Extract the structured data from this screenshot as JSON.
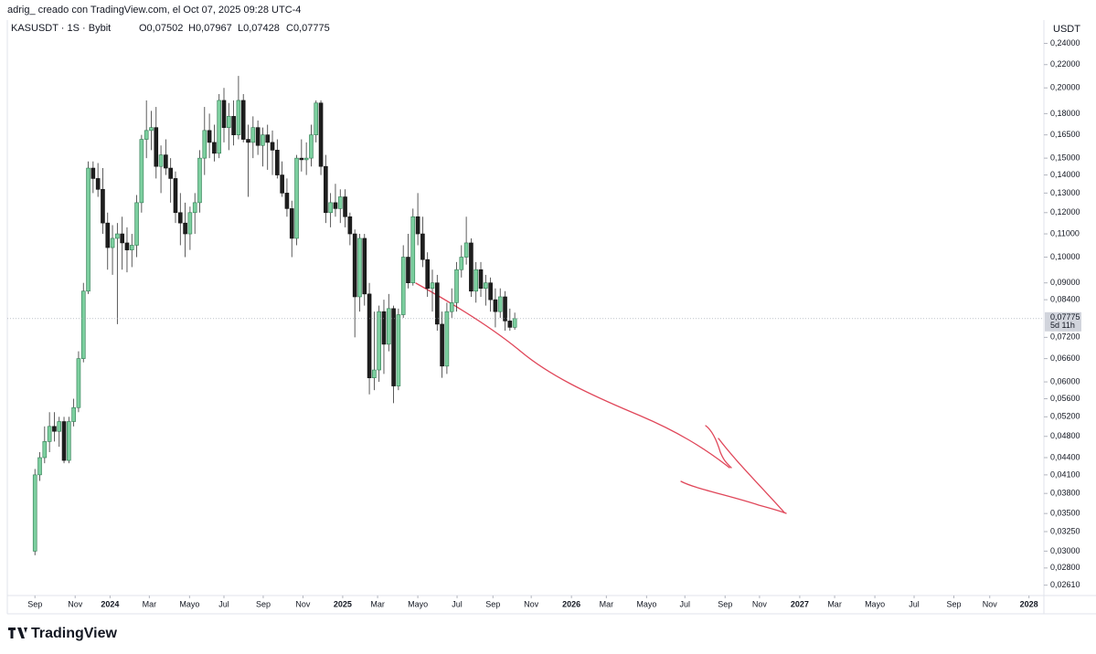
{
  "chart_data": {
    "type": "candlestick",
    "credit": "adrig_ creado con TradingView.com, el Oct 07, 2025 09:28 UTC-4",
    "title": "KASUSDT · 1S · Bybit",
    "ohlc_labels": [
      "O0,07502",
      "H0,07967",
      "L0,07428",
      "C0,07775"
    ],
    "y_unit": "USDT",
    "last_price_label": "0,07775",
    "countdown": "5d 11h",
    "brand": "TradingView",
    "log_scale": true,
    "grid": false,
    "up_color": "#7ccf9f",
    "down_color": "#1e1e1e",
    "x": [
      0,
      1,
      2,
      3,
      4,
      5,
      6,
      7,
      8,
      9,
      10,
      11,
      12,
      13,
      14,
      15,
      16,
      17,
      18,
      19,
      20,
      21,
      22,
      23,
      24,
      25,
      26,
      27,
      28,
      29,
      30,
      31,
      32,
      33,
      34,
      35,
      36,
      37,
      38,
      39,
      40,
      41,
      42,
      43,
      44,
      45,
      46,
      47,
      48,
      49,
      50,
      51,
      52,
      53,
      54,
      55,
      56,
      57,
      58,
      59,
      60,
      61,
      62,
      63,
      64,
      65,
      66,
      67,
      68,
      69,
      70,
      71,
      72,
      73,
      74,
      75,
      76,
      77,
      78,
      79,
      80,
      81,
      82,
      83,
      84,
      85,
      86,
      87,
      88,
      89,
      90,
      91,
      92,
      93,
      94,
      95,
      96,
      97,
      98,
      99
    ],
    "open": [
      0.03,
      0.041,
      0.044,
      0.047,
      0.05,
      0.049,
      0.051,
      0.0435,
      0.051,
      0.054,
      0.066,
      0.087,
      0.144,
      0.138,
      0.132,
      0.115,
      0.104,
      0.108,
      0.11,
      0.106,
      0.103,
      0.105,
      0.125,
      0.162,
      0.168,
      0.17,
      0.145,
      0.152,
      0.144,
      0.138,
      0.12,
      0.115,
      0.11,
      0.12,
      0.125,
      0.15,
      0.168,
      0.16,
      0.153,
      0.19,
      0.17,
      0.178,
      0.165,
      0.19,
      0.162,
      0.16,
      0.17,
      0.158,
      0.165,
      0.16,
      0.155,
      0.14,
      0.13,
      0.122,
      0.108,
      0.15,
      0.149,
      0.15,
      0.165,
      0.188,
      0.145,
      0.12,
      0.125,
      0.122,
      0.128,
      0.118,
      0.11,
      0.085,
      0.108,
      0.086,
      0.061,
      0.063,
      0.08,
      0.07,
      0.081,
      0.059,
      0.079,
      0.1,
      0.09,
      0.118,
      0.11,
      0.099,
      0.088,
      0.09,
      0.076,
      0.064,
      0.08,
      0.083,
      0.095,
      0.1,
      0.106,
      0.087,
      0.095,
      0.088,
      0.09,
      0.084,
      0.08,
      0.085,
      0.077,
      0.07502
    ],
    "high": [
      0.042,
      0.045,
      0.05,
      0.053,
      0.053,
      0.052,
      0.052,
      0.052,
      0.056,
      0.068,
      0.09,
      0.148,
      0.148,
      0.147,
      0.144,
      0.12,
      0.114,
      0.115,
      0.118,
      0.113,
      0.11,
      0.129,
      0.165,
      0.19,
      0.182,
      0.185,
      0.158,
      0.162,
      0.15,
      0.142,
      0.13,
      0.125,
      0.123,
      0.13,
      0.155,
      0.185,
      0.18,
      0.172,
      0.195,
      0.2,
      0.188,
      0.19,
      0.21,
      0.195,
      0.172,
      0.178,
      0.175,
      0.17,
      0.172,
      0.168,
      0.162,
      0.148,
      0.138,
      0.126,
      0.152,
      0.162,
      0.16,
      0.172,
      0.19,
      0.19,
      0.152,
      0.13,
      0.135,
      0.132,
      0.132,
      0.12,
      0.112,
      0.11,
      0.11,
      0.09,
      0.08,
      0.082,
      0.084,
      0.086,
      0.082,
      0.081,
      0.105,
      0.11,
      0.122,
      0.13,
      0.118,
      0.102,
      0.095,
      0.093,
      0.08,
      0.083,
      0.088,
      0.098,
      0.105,
      0.118,
      0.108,
      0.098,
      0.098,
      0.093,
      0.092,
      0.088,
      0.088,
      0.087,
      0.081,
      0.07967
    ],
    "low": [
      0.0295,
      0.04,
      0.043,
      0.045,
      0.047,
      0.046,
      0.043,
      0.043,
      0.05,
      0.053,
      0.065,
      0.086,
      0.13,
      0.128,
      0.11,
      0.095,
      0.093,
      0.076,
      0.095,
      0.094,
      0.096,
      0.1,
      0.12,
      0.15,
      0.155,
      0.138,
      0.13,
      0.14,
      0.125,
      0.115,
      0.105,
      0.1,
      0.103,
      0.11,
      0.12,
      0.14,
      0.15,
      0.148,
      0.15,
      0.16,
      0.155,
      0.158,
      0.162,
      0.16,
      0.128,
      0.15,
      0.152,
      0.145,
      0.143,
      0.14,
      0.138,
      0.128,
      0.118,
      0.1,
      0.105,
      0.142,
      0.14,
      0.145,
      0.16,
      0.14,
      0.115,
      0.113,
      0.118,
      0.115,
      0.113,
      0.105,
      0.072,
      0.08,
      0.082,
      0.057,
      0.058,
      0.06,
      0.062,
      0.068,
      0.055,
      0.058,
      0.078,
      0.088,
      0.089,
      0.105,
      0.096,
      0.085,
      0.08,
      0.074,
      0.061,
      0.062,
      0.078,
      0.08,
      0.092,
      0.097,
      0.085,
      0.083,
      0.085,
      0.082,
      0.08,
      0.075,
      0.078,
      0.074,
      0.074,
      0.07428
    ],
    "close": [
      0.041,
      0.044,
      0.047,
      0.05,
      0.049,
      0.051,
      0.0435,
      0.051,
      0.054,
      0.066,
      0.087,
      0.144,
      0.138,
      0.132,
      0.115,
      0.104,
      0.108,
      0.11,
      0.106,
      0.103,
      0.105,
      0.125,
      0.162,
      0.168,
      0.17,
      0.145,
      0.152,
      0.144,
      0.138,
      0.12,
      0.115,
      0.11,
      0.12,
      0.125,
      0.15,
      0.168,
      0.16,
      0.153,
      0.19,
      0.17,
      0.178,
      0.165,
      0.19,
      0.162,
      0.16,
      0.17,
      0.158,
      0.165,
      0.16,
      0.155,
      0.14,
      0.13,
      0.122,
      0.108,
      0.15,
      0.149,
      0.15,
      0.165,
      0.188,
      0.145,
      0.12,
      0.125,
      0.122,
      0.128,
      0.118,
      0.11,
      0.085,
      0.108,
      0.086,
      0.061,
      0.063,
      0.08,
      0.07,
      0.081,
      0.059,
      0.079,
      0.1,
      0.09,
      0.118,
      0.11,
      0.099,
      0.088,
      0.09,
      0.076,
      0.064,
      0.08,
      0.083,
      0.095,
      0.1,
      0.106,
      0.087,
      0.095,
      0.088,
      0.09,
      0.084,
      0.08,
      0.085,
      0.077,
      0.07502,
      0.07775
    ],
    "xlim": [
      -5.7,
      207.8
    ],
    "xticks": [
      {
        "value": 0,
        "label": "Sep"
      },
      {
        "value": 8.3,
        "label": "Nov"
      },
      {
        "value": 15.5,
        "label": "2024"
      },
      {
        "value": 23.6,
        "label": "Mar"
      },
      {
        "value": 31.9,
        "label": "Mayo"
      },
      {
        "value": 39.0,
        "label": "Jul"
      },
      {
        "value": 47.1,
        "label": "Sep"
      },
      {
        "value": 55.3,
        "label": "Nov"
      },
      {
        "value": 63.5,
        "label": "2025"
      },
      {
        "value": 70.7,
        "label": "Mar"
      },
      {
        "value": 79.0,
        "label": "Mayo"
      },
      {
        "value": 87.1,
        "label": "Jul"
      },
      {
        "value": 94.5,
        "label": "Sep"
      },
      {
        "value": 102.4,
        "label": "Nov"
      },
      {
        "value": 110.7,
        "label": "2026"
      },
      {
        "value": 117.9,
        "label": "Mar"
      },
      {
        "value": 126.2,
        "label": "Mayo"
      },
      {
        "value": 134.1,
        "label": "Jul"
      },
      {
        "value": 142.4,
        "label": "Sep"
      },
      {
        "value": 149.5,
        "label": "Nov"
      },
      {
        "value": 157.8,
        "label": "2027"
      },
      {
        "value": 165.0,
        "label": "Mar"
      },
      {
        "value": 173.3,
        "label": "Mayo"
      },
      {
        "value": 181.4,
        "label": "Jul"
      },
      {
        "value": 189.6,
        "label": "Sep"
      },
      {
        "value": 197.0,
        "label": "Nov"
      },
      {
        "value": 205.1,
        "label": "2028"
      }
    ],
    "ylim": [
      0.0252,
      0.264
    ],
    "yticks": [
      {
        "value": 0.24,
        "label": "0,24000"
      },
      {
        "value": 0.22,
        "label": "0,22000"
      },
      {
        "value": 0.2,
        "label": "0,20000"
      },
      {
        "value": 0.18,
        "label": "0,18000"
      },
      {
        "value": 0.165,
        "label": "0,16500"
      },
      {
        "value": 0.15,
        "label": "0,15000"
      },
      {
        "value": 0.14,
        "label": "0,14000"
      },
      {
        "value": 0.13,
        "label": "0,13000"
      },
      {
        "value": 0.12,
        "label": "0,12000"
      },
      {
        "value": 0.11,
        "label": "0,11000"
      },
      {
        "value": 0.1,
        "label": "0,10000"
      },
      {
        "value": 0.09,
        "label": "0,09000"
      },
      {
        "value": 0.084,
        "label": "0,08400"
      },
      {
        "value": 0.072,
        "label": "0,07200"
      },
      {
        "value": 0.066,
        "label": "0,06600"
      },
      {
        "value": 0.06,
        "label": "0,06000"
      },
      {
        "value": 0.056,
        "label": "0,05600"
      },
      {
        "value": 0.052,
        "label": "0,05200"
      },
      {
        "value": 0.048,
        "label": "0,04800"
      },
      {
        "value": 0.044,
        "label": "0,04400"
      },
      {
        "value": 0.041,
        "label": "0,04100"
      },
      {
        "value": 0.038,
        "label": "0,03800"
      },
      {
        "value": 0.035,
        "label": "0,03500"
      },
      {
        "value": 0.0325,
        "label": "0,03250"
      },
      {
        "value": 0.03,
        "label": "0,03000"
      },
      {
        "value": 0.028,
        "label": "0,02800"
      },
      {
        "value": 0.0261,
        "label": "0,02610"
      }
    ]
  }
}
